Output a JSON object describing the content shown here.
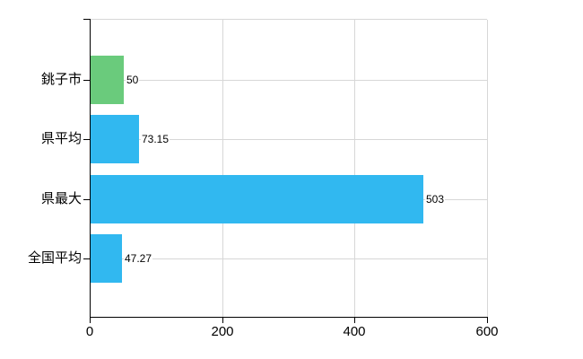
{
  "chart_data": {
    "type": "bar",
    "orientation": "horizontal",
    "title": "",
    "xlabel": "",
    "ylabel": "",
    "categories": [
      "銚子市",
      "県平均",
      "県最大",
      "全国平均"
    ],
    "values": [
      50,
      73.15,
      503,
      47.27
    ],
    "value_labels": [
      "50",
      "73.15",
      "503",
      "47.27"
    ],
    "series": [
      {
        "name": "",
        "values": [
          50,
          73.15,
          503,
          47.27
        ]
      }
    ],
    "bar_colors": [
      "#6acb7c",
      "#31b8f0",
      "#31b8f0",
      "#31b8f0"
    ],
    "xlim": [
      0,
      600
    ],
    "x_ticks": [
      0,
      200,
      400,
      600
    ],
    "x_tick_labels": [
      "0",
      "200",
      "400",
      "600"
    ],
    "grid": true,
    "legend": "none",
    "colors": {
      "background": "#ffffff",
      "axis": "#000000",
      "gridline": "#d7d7d7",
      "text": "#000000",
      "green_bar": "#6acb7c",
      "blue_bar": "#31b8f0"
    }
  }
}
